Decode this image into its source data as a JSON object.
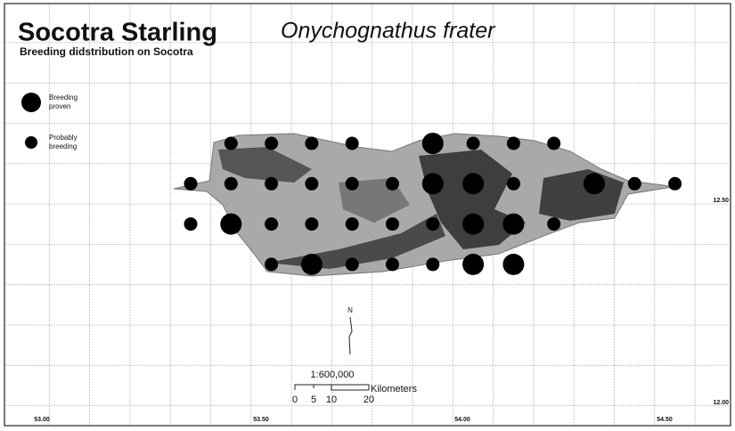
{
  "header": {
    "title": "Socotra Starling",
    "species": "Onychognathus frater",
    "subtitle": "Breeding didstribution on Socotra"
  },
  "legend": [
    {
      "label_lines": [
        "Breeding",
        "proven"
      ]
    },
    {
      "label_lines": [
        "Probably",
        "breeding"
      ]
    }
  ],
  "longitude_labels": [
    "53.00",
    "53.50",
    "54.00",
    "54.50"
  ],
  "latitude_labels": [
    "12.50",
    "12.00"
  ],
  "north": "N",
  "scale": {
    "ratio": "1:600,000",
    "unit": "Kilometers",
    "ticks": [
      "0",
      "5",
      "10",
      "20"
    ]
  }
}
